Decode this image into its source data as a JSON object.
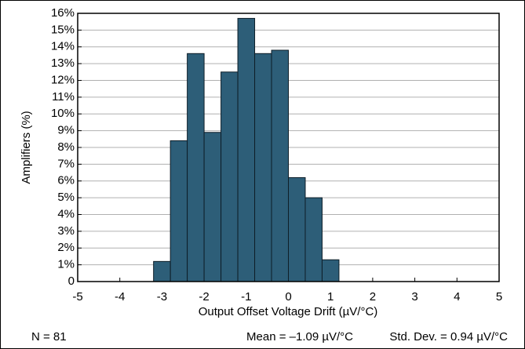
{
  "chart_data": {
    "type": "histogram",
    "xlabel": "Output Offset Voltage Drift (µV/°C)",
    "ylabel": "Amplifiers (%)",
    "bins": [
      -3.2,
      -2.8,
      -2.4,
      -2.0,
      -1.6,
      -1.2,
      -0.8,
      -0.4,
      0,
      0.4,
      0.8,
      1.2
    ],
    "values": [
      1.2,
      8.4,
      13.6,
      8.9,
      12.5,
      15.7,
      13.6,
      13.8,
      6.2,
      5.0,
      1.3
    ],
    "color": "#2d5e78",
    "xlim": [
      -5,
      5
    ],
    "xticks": [
      -5,
      -4,
      -3,
      -2,
      -1,
      0,
      1,
      2,
      3,
      4,
      5
    ],
    "ylim": [
      0,
      16
    ],
    "yticks": [
      0,
      {
        "value": 1,
        "label": "1%"
      },
      {
        "value": 2,
        "label": "2%"
      },
      {
        "value": 3,
        "label": "3%"
      },
      {
        "value": 4,
        "label": "4%"
      },
      {
        "value": 5,
        "label": "5%"
      },
      {
        "value": 6,
        "label": "6%"
      },
      {
        "value": 7,
        "label": "7%"
      },
      {
        "value": 8,
        "label": "8%"
      },
      {
        "value": 9,
        "label": "9%"
      },
      {
        "value": 10,
        "label": "10%"
      },
      {
        "value": 11,
        "label": "11%"
      },
      {
        "value": 12,
        "label": "12%"
      },
      {
        "value": 13,
        "label": "13%"
      },
      {
        "value": 14,
        "label": "14%"
      },
      {
        "value": 15,
        "label": "15%"
      },
      {
        "value": 16,
        "label": "16%"
      }
    ],
    "grid": true,
    "annotations": [
      "N = 81",
      "Mean = –1.09 µV/°C",
      "Std. Dev. = 0.94 µV/°C"
    ]
  }
}
